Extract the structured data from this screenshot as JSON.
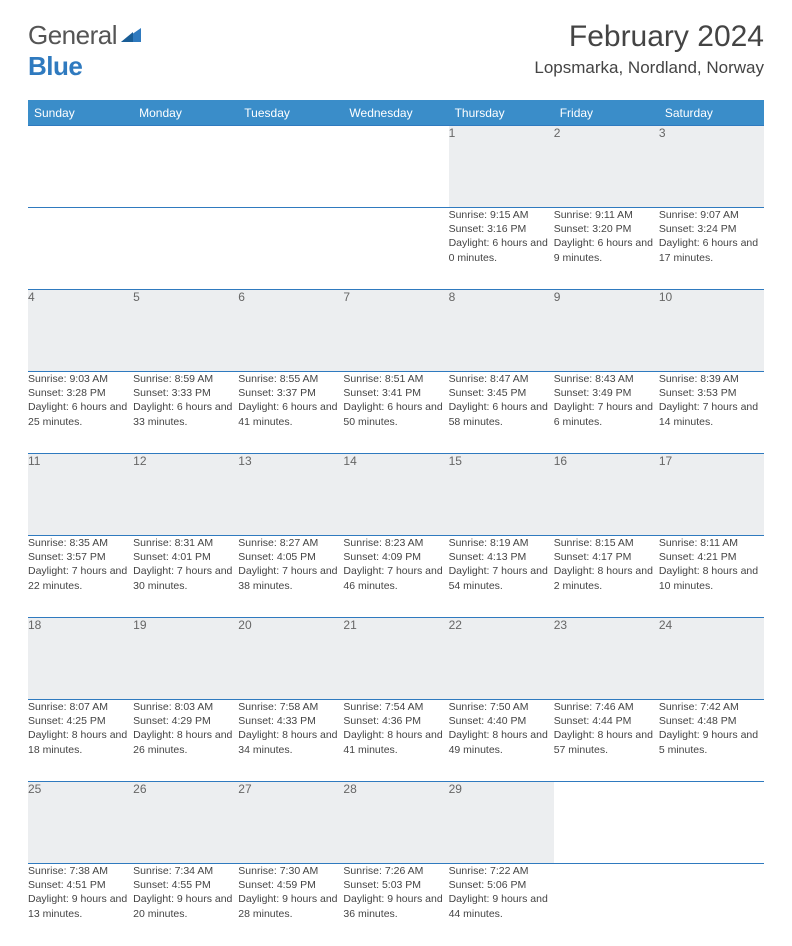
{
  "logo": {
    "word1": "General",
    "word2": "Blue"
  },
  "title": "February 2024",
  "location": "Lopsmarka, Nordland, Norway",
  "colors": {
    "headerBg": "#3a8dc9",
    "rowBorder": "#2f7abf",
    "dayStripBg": "#eceef0",
    "logoBlue": "#2f7abf",
    "textGray": "#555555"
  },
  "dayNames": [
    "Sunday",
    "Monday",
    "Tuesday",
    "Wednesday",
    "Thursday",
    "Friday",
    "Saturday"
  ],
  "weeks": [
    [
      null,
      null,
      null,
      null,
      {
        "n": "1",
        "sr": "9:15 AM",
        "ss": "3:16 PM",
        "dl": "6 hours and 0 minutes."
      },
      {
        "n": "2",
        "sr": "9:11 AM",
        "ss": "3:20 PM",
        "dl": "6 hours and 9 minutes."
      },
      {
        "n": "3",
        "sr": "9:07 AM",
        "ss": "3:24 PM",
        "dl": "6 hours and 17 minutes."
      }
    ],
    [
      {
        "n": "4",
        "sr": "9:03 AM",
        "ss": "3:28 PM",
        "dl": "6 hours and 25 minutes."
      },
      {
        "n": "5",
        "sr": "8:59 AM",
        "ss": "3:33 PM",
        "dl": "6 hours and 33 minutes."
      },
      {
        "n": "6",
        "sr": "8:55 AM",
        "ss": "3:37 PM",
        "dl": "6 hours and 41 minutes."
      },
      {
        "n": "7",
        "sr": "8:51 AM",
        "ss": "3:41 PM",
        "dl": "6 hours and 50 minutes."
      },
      {
        "n": "8",
        "sr": "8:47 AM",
        "ss": "3:45 PM",
        "dl": "6 hours and 58 minutes."
      },
      {
        "n": "9",
        "sr": "8:43 AM",
        "ss": "3:49 PM",
        "dl": "7 hours and 6 minutes."
      },
      {
        "n": "10",
        "sr": "8:39 AM",
        "ss": "3:53 PM",
        "dl": "7 hours and 14 minutes."
      }
    ],
    [
      {
        "n": "11",
        "sr": "8:35 AM",
        "ss": "3:57 PM",
        "dl": "7 hours and 22 minutes."
      },
      {
        "n": "12",
        "sr": "8:31 AM",
        "ss": "4:01 PM",
        "dl": "7 hours and 30 minutes."
      },
      {
        "n": "13",
        "sr": "8:27 AM",
        "ss": "4:05 PM",
        "dl": "7 hours and 38 minutes."
      },
      {
        "n": "14",
        "sr": "8:23 AM",
        "ss": "4:09 PM",
        "dl": "7 hours and 46 minutes."
      },
      {
        "n": "15",
        "sr": "8:19 AM",
        "ss": "4:13 PM",
        "dl": "7 hours and 54 minutes."
      },
      {
        "n": "16",
        "sr": "8:15 AM",
        "ss": "4:17 PM",
        "dl": "8 hours and 2 minutes."
      },
      {
        "n": "17",
        "sr": "8:11 AM",
        "ss": "4:21 PM",
        "dl": "8 hours and 10 minutes."
      }
    ],
    [
      {
        "n": "18",
        "sr": "8:07 AM",
        "ss": "4:25 PM",
        "dl": "8 hours and 18 minutes."
      },
      {
        "n": "19",
        "sr": "8:03 AM",
        "ss": "4:29 PM",
        "dl": "8 hours and 26 minutes."
      },
      {
        "n": "20",
        "sr": "7:58 AM",
        "ss": "4:33 PM",
        "dl": "8 hours and 34 minutes."
      },
      {
        "n": "21",
        "sr": "7:54 AM",
        "ss": "4:36 PM",
        "dl": "8 hours and 41 minutes."
      },
      {
        "n": "22",
        "sr": "7:50 AM",
        "ss": "4:40 PM",
        "dl": "8 hours and 49 minutes."
      },
      {
        "n": "23",
        "sr": "7:46 AM",
        "ss": "4:44 PM",
        "dl": "8 hours and 57 minutes."
      },
      {
        "n": "24",
        "sr": "7:42 AM",
        "ss": "4:48 PM",
        "dl": "9 hours and 5 minutes."
      }
    ],
    [
      {
        "n": "25",
        "sr": "7:38 AM",
        "ss": "4:51 PM",
        "dl": "9 hours and 13 minutes."
      },
      {
        "n": "26",
        "sr": "7:34 AM",
        "ss": "4:55 PM",
        "dl": "9 hours and 20 minutes."
      },
      {
        "n": "27",
        "sr": "7:30 AM",
        "ss": "4:59 PM",
        "dl": "9 hours and 28 minutes."
      },
      {
        "n": "28",
        "sr": "7:26 AM",
        "ss": "5:03 PM",
        "dl": "9 hours and 36 minutes."
      },
      {
        "n": "29",
        "sr": "7:22 AM",
        "ss": "5:06 PM",
        "dl": "9 hours and 44 minutes."
      },
      null,
      null
    ]
  ],
  "labels": {
    "sunrise": "Sunrise:",
    "sunset": "Sunset:",
    "daylight": "Daylight:"
  }
}
